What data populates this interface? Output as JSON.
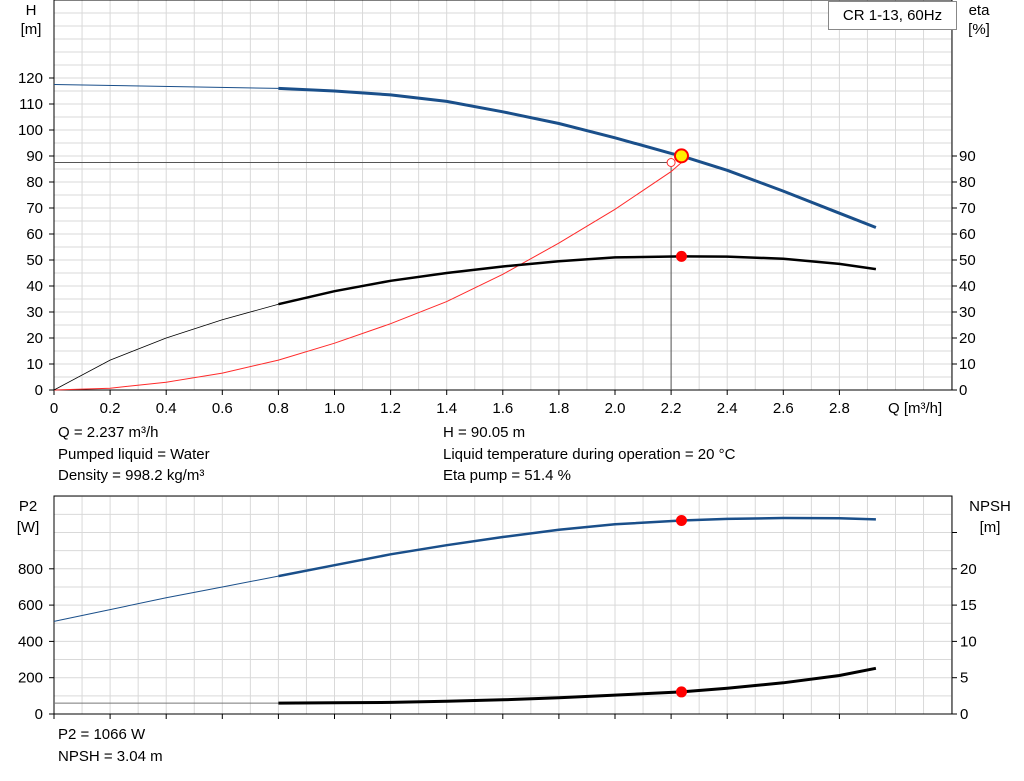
{
  "legend": "CR 1-13, 60Hz",
  "info_top_left": [
    "Q = 2.237 m³/h",
    "Pumped liquid = Water",
    "Density = 998.2 kg/m³"
  ],
  "info_top_right": [
    "H = 90.05 m",
    "Liquid temperature during operation = 20 °C",
    "Eta pump = 51.4 %"
  ],
  "info_bottom": [
    "P2 = 1066 W",
    "NPSH = 3.04 m"
  ],
  "colors": {
    "pump_curve": "#1a4f8a",
    "eta_curve": "#000000",
    "system_curve": "#ff2a2a",
    "grid": "#d9d9d9",
    "operating_point": "#ff0000",
    "duty_point_fill": "#ffee00"
  },
  "chart_data": [
    {
      "type": "line",
      "panel": "top",
      "y_left": {
        "label": "H",
        "unit": "[m]",
        "ticks": [
          0,
          10,
          20,
          30,
          40,
          50,
          60,
          70,
          80,
          90,
          100,
          110,
          120
        ]
      },
      "y_right": {
        "label": "eta",
        "unit": "[%]",
        "ticks": [
          0,
          10,
          20,
          30,
          40,
          50,
          60,
          70,
          80,
          90
        ]
      },
      "x": {
        "label": "Q [m³/h]",
        "ticks": [
          "0",
          "0.2",
          "0.4",
          "0.6",
          "0.8",
          "1.0",
          "1.2",
          "1.4",
          "1.6",
          "1.8",
          "2.0",
          "2.2",
          "2.4",
          "2.6",
          "2.8"
        ],
        "range": [
          0,
          3.2
        ]
      },
      "ylim": [
        0,
        120
      ],
      "grid": true,
      "series": [
        {
          "key": "H",
          "axis": "left",
          "points": [
            [
              0,
              117.5
            ],
            [
              0.8,
              116
            ],
            [
              1.0,
              115
            ],
            [
              1.2,
              113.5
            ],
            [
              1.4,
              111
            ],
            [
              1.6,
              107
            ],
            [
              1.8,
              102.5
            ],
            [
              2.0,
              97
            ],
            [
              2.2,
              91
            ],
            [
              2.237,
              90.05
            ],
            [
              2.4,
              84.5
            ],
            [
              2.6,
              76.5
            ],
            [
              2.8,
              68
            ],
            [
              2.93,
              62.5
            ]
          ]
        },
        {
          "key": "eta",
          "axis": "right",
          "points": [
            [
              0,
              0
            ],
            [
              0.2,
              11.5
            ],
            [
              0.4,
              20
            ],
            [
              0.6,
              27
            ],
            [
              0.8,
              33
            ],
            [
              1.0,
              38
            ],
            [
              1.2,
              42
            ],
            [
              1.4,
              45
            ],
            [
              1.6,
              47.5
            ],
            [
              1.8,
              49.5
            ],
            [
              2.0,
              51
            ],
            [
              2.237,
              51.4
            ],
            [
              2.4,
              51.3
            ],
            [
              2.6,
              50.5
            ],
            [
              2.8,
              48.5
            ],
            [
              2.93,
              46.5
            ]
          ]
        },
        {
          "key": "system",
          "axis": "left",
          "points": [
            [
              0,
              0
            ],
            [
              0.2,
              0.7
            ],
            [
              0.4,
              3
            ],
            [
              0.6,
              6.5
            ],
            [
              0.8,
              11.5
            ],
            [
              1.0,
              18
            ],
            [
              1.2,
              25.5
            ],
            [
              1.4,
              34
            ],
            [
              1.6,
              44.5
            ],
            [
              1.8,
              56.5
            ],
            [
              2.0,
              69.5
            ],
            [
              2.2,
              84
            ],
            [
              2.237,
              87.5
            ]
          ]
        }
      ],
      "duty_point": {
        "q": 2.237,
        "h": 90.05,
        "eta": 51.4
      },
      "guide_h": 87.5
    },
    {
      "type": "line",
      "panel": "bottom",
      "y_left": {
        "label": "P2",
        "unit": "[W]",
        "ticks": [
          0,
          200,
          400,
          600,
          800
        ]
      },
      "y_right": {
        "label": "NPSH",
        "unit": "[m]",
        "ticks": [
          0,
          5,
          10,
          15,
          20
        ]
      },
      "x": {
        "range": [
          0,
          3.2
        ]
      },
      "ylim_left": [
        0,
        1100
      ],
      "ylim_right": [
        0,
        27.5
      ],
      "grid": true,
      "series": [
        {
          "key": "P2",
          "axis": "left",
          "points": [
            [
              0,
              510
            ],
            [
              0.2,
              575
            ],
            [
              0.4,
              640
            ],
            [
              0.6,
              700
            ],
            [
              0.8,
              760
            ],
            [
              1.0,
              820
            ],
            [
              1.2,
              880
            ],
            [
              1.4,
              930
            ],
            [
              1.6,
              975
            ],
            [
              1.8,
              1015
            ],
            [
              2.0,
              1045
            ],
            [
              2.237,
              1066
            ],
            [
              2.4,
              1075
            ],
            [
              2.6,
              1080
            ],
            [
              2.8,
              1078
            ],
            [
              2.93,
              1072
            ]
          ]
        },
        {
          "key": "NPSH",
          "axis": "right",
          "points": [
            [
              0,
              1.5
            ],
            [
              0.8,
              1.5
            ],
            [
              1.0,
              1.55
            ],
            [
              1.2,
              1.6
            ],
            [
              1.4,
              1.75
            ],
            [
              1.6,
              1.95
            ],
            [
              1.8,
              2.25
            ],
            [
              2.0,
              2.6
            ],
            [
              2.237,
              3.04
            ],
            [
              2.4,
              3.55
            ],
            [
              2.6,
              4.3
            ],
            [
              2.8,
              5.3
            ],
            [
              2.93,
              6.3
            ]
          ]
        }
      ],
      "duty_point": {
        "q": 2.237,
        "p2": 1066,
        "npsh": 3.04
      }
    }
  ]
}
